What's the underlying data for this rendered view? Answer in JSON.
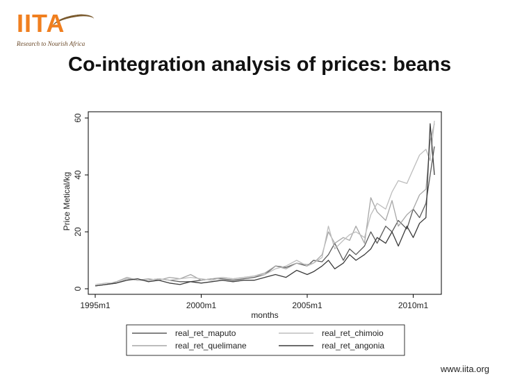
{
  "logo": {
    "name": "IITA",
    "tagline": "Research to Nourish Africa"
  },
  "slide": {
    "title": "Co-integration analysis of prices: beans"
  },
  "footer": {
    "url": "www.iita.org"
  },
  "chart_data": {
    "type": "line",
    "title": "",
    "xlabel": "months",
    "ylabel": "Price Metical/kg",
    "ylim": [
      0,
      60
    ],
    "xlim": [
      1995.0,
      2011.0
    ],
    "xticks": [
      1995.0,
      2000.0,
      2005.0,
      2010.0
    ],
    "xtick_labels": [
      "1995m1",
      "2000m1",
      "2005m1",
      "2010m1"
    ],
    "yticks": [
      0,
      20,
      40,
      60
    ],
    "ytick_labels": [
      "0",
      "20",
      "40",
      "60"
    ],
    "legend_position": "bottom",
    "series": [
      {
        "name": "real_ret_maputo",
        "color": "#5a5a5a",
        "x": [
          1995.0,
          1995.5,
          1996.0,
          1996.5,
          1997.0,
          1997.5,
          1998.0,
          1998.5,
          1999.0,
          1999.5,
          2000.0,
          2000.5,
          2001.0,
          2001.5,
          2002.0,
          2002.5,
          2003.0,
          2003.5,
          2004.0,
          2004.5,
          2005.0,
          2005.3,
          2005.7,
          2006.0,
          2006.3,
          2006.7,
          2007.0,
          2007.3,
          2007.7,
          2008.0,
          2008.3,
          2008.7,
          2009.0,
          2009.3,
          2009.7,
          2010.0,
          2010.3,
          2010.6,
          2010.8,
          2011.0
        ],
        "y": [
          1.0,
          1.5,
          2.0,
          3.5,
          3.0,
          3.0,
          3.5,
          3.0,
          2.5,
          2.5,
          3.0,
          3.5,
          3.5,
          3.0,
          3.5,
          4.0,
          5.0,
          8.0,
          7.5,
          9.0,
          8.0,
          10.0,
          9.5,
          12.0,
          16.0,
          10.0,
          14.0,
          12.0,
          15.0,
          20.0,
          16.0,
          22.0,
          20.0,
          24.0,
          21.0,
          28.0,
          25.0,
          30.0,
          40.0,
          50.0
        ]
      },
      {
        "name": "real_ret_quelimane",
        "color": "#a6a6a6",
        "x": [
          1995.0,
          1995.5,
          1996.0,
          1996.5,
          1997.0,
          1997.5,
          1998.0,
          1998.5,
          1999.0,
          1999.5,
          2000.0,
          2000.5,
          2001.0,
          2001.5,
          2002.0,
          2002.5,
          2003.0,
          2003.5,
          2004.0,
          2004.5,
          2005.0,
          2005.3,
          2005.7,
          2006.0,
          2006.3,
          2006.7,
          2007.0,
          2007.3,
          2007.7,
          2008.0,
          2008.3,
          2008.7,
          2009.0,
          2009.3,
          2009.7,
          2010.0,
          2010.3,
          2010.6,
          2010.8,
          2011.0
        ],
        "y": [
          1.0,
          1.5,
          2.5,
          4.0,
          3.0,
          3.5,
          3.0,
          4.0,
          3.5,
          5.0,
          3.0,
          3.5,
          4.0,
          3.5,
          4.0,
          4.5,
          5.5,
          8.0,
          7.0,
          9.0,
          8.5,
          9.0,
          12.0,
          20.0,
          16.0,
          18.0,
          17.0,
          22.0,
          16.0,
          32.0,
          27.0,
          24.0,
          31.0,
          22.0,
          26.0,
          28.0,
          33.0,
          35.0,
          52.0,
          58.0
        ]
      },
      {
        "name": "real_ret_chimoio",
        "color": "#bdbdbd",
        "x": [
          1995.0,
          1995.5,
          1996.0,
          1996.5,
          1997.0,
          1997.5,
          1998.0,
          1998.5,
          1999.0,
          1999.5,
          2000.0,
          2000.5,
          2001.0,
          2001.5,
          2002.0,
          2002.5,
          2003.0,
          2003.5,
          2004.0,
          2004.5,
          2005.0,
          2005.3,
          2005.7,
          2006.0,
          2006.3,
          2006.7,
          2007.0,
          2007.3,
          2007.7,
          2008.0,
          2008.3,
          2008.7,
          2009.0,
          2009.3,
          2009.7,
          2010.0,
          2010.3,
          2010.6,
          2010.8,
          2011.0
        ],
        "y": [
          1.5,
          2.0,
          2.0,
          3.5,
          3.0,
          3.0,
          3.5,
          3.0,
          3.5,
          4.0,
          3.5,
          3.0,
          4.0,
          3.5,
          4.0,
          4.5,
          5.0,
          7.0,
          8.0,
          10.0,
          8.0,
          9.0,
          11.0,
          22.0,
          14.0,
          17.0,
          19.0,
          20.0,
          18.0,
          26.0,
          30.0,
          28.0,
          34.0,
          38.0,
          37.0,
          42.0,
          47.0,
          49.0,
          45.0,
          59.0
        ]
      },
      {
        "name": "real_ret_angonia",
        "color": "#3a3a3a",
        "x": [
          1995.0,
          1995.5,
          1996.0,
          1996.5,
          1997.0,
          1997.5,
          1998.0,
          1998.5,
          1999.0,
          1999.5,
          2000.0,
          2000.5,
          2001.0,
          2001.5,
          2002.0,
          2002.5,
          2003.0,
          2003.5,
          2004.0,
          2004.5,
          2005.0,
          2005.3,
          2005.7,
          2006.0,
          2006.3,
          2006.7,
          2007.0,
          2007.3,
          2007.7,
          2008.0,
          2008.3,
          2008.7,
          2009.0,
          2009.3,
          2009.7,
          2010.0,
          2010.3,
          2010.6,
          2010.8,
          2011.0
        ],
        "y": [
          1.0,
          1.5,
          2.0,
          3.0,
          3.5,
          2.5,
          3.0,
          2.0,
          1.5,
          2.5,
          2.0,
          2.5,
          3.0,
          2.5,
          3.0,
          3.0,
          4.0,
          5.0,
          4.0,
          6.5,
          5.0,
          6.0,
          8.0,
          10.0,
          7.0,
          9.0,
          12.0,
          10.0,
          12.0,
          14.0,
          18.0,
          16.0,
          20.0,
          15.0,
          22.0,
          18.0,
          23.0,
          25.0,
          58.0,
          40.0
        ]
      }
    ]
  }
}
